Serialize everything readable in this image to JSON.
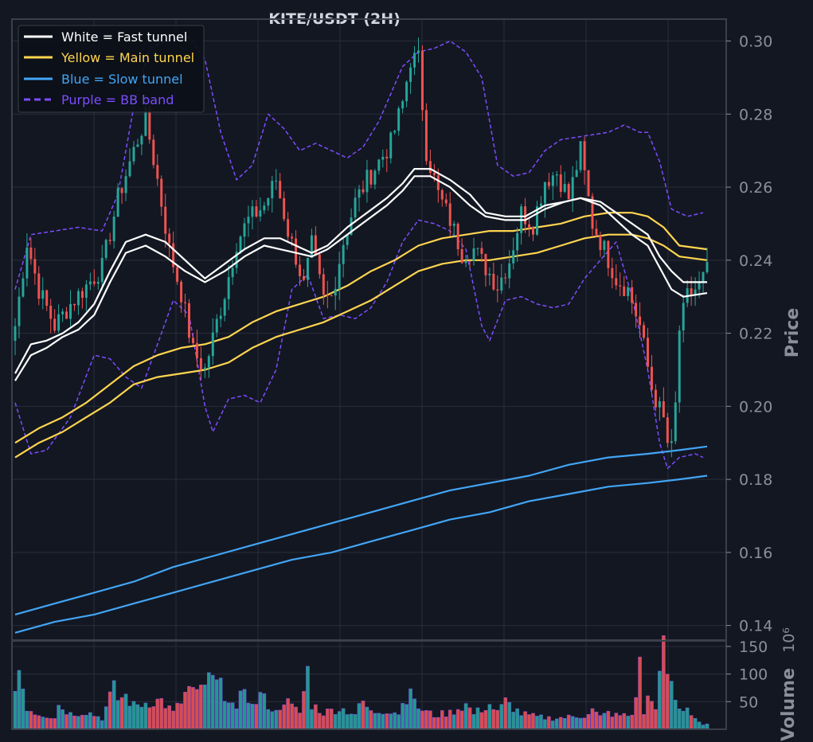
{
  "chart_data": {
    "type": "candlestick",
    "title": "KITE/USDT (2H)",
    "ylabel": "Price",
    "volume_label": "Volume",
    "volume_scale_label": "10⁶",
    "ylim": [
      0.136,
      0.306
    ],
    "volume_ylim": [
      0,
      160
    ],
    "y_ticks": [
      "0.14",
      "0.16",
      "0.18",
      "0.20",
      "0.22",
      "0.24",
      "0.26",
      "0.28",
      "0.30"
    ],
    "volume_ticks": [
      "50",
      "100",
      "150"
    ],
    "grid": true,
    "legend_position": "top-left",
    "colors": {
      "background": "#131722",
      "grid": "#2a2e39",
      "up": "#26a69a",
      "down": "#ef5350",
      "fast": "#ffffff",
      "main": "#ffd54f",
      "slow": "#42a5f5",
      "bb": "#7c4dff"
    },
    "legend": [
      {
        "label": "White = Fast tunnel",
        "color": "#ffffff",
        "dashed": false
      },
      {
        "label": "Yellow = Main tunnel",
        "color": "#ffd54f",
        "dashed": false
      },
      {
        "label": "Blue = Slow tunnel",
        "color": "#42a5f5",
        "dashed": false
      },
      {
        "label": "Purple = BB band",
        "color": "#7c4dff",
        "dashed": true
      }
    ],
    "close_anchors": [
      [
        0,
        0.222
      ],
      [
        3,
        0.245
      ],
      [
        6,
        0.232
      ],
      [
        10,
        0.222
      ],
      [
        14,
        0.228
      ],
      [
        18,
        0.233
      ],
      [
        22,
        0.238
      ],
      [
        26,
        0.257
      ],
      [
        30,
        0.27
      ],
      [
        33,
        0.279
      ],
      [
        36,
        0.262
      ],
      [
        39,
        0.243
      ],
      [
        42,
        0.231
      ],
      [
        45,
        0.215
      ],
      [
        48,
        0.21
      ],
      [
        51,
        0.223
      ],
      [
        53,
        0.231
      ],
      [
        56,
        0.245
      ],
      [
        59,
        0.251
      ],
      [
        63,
        0.255
      ],
      [
        66,
        0.262
      ],
      [
        69,
        0.248
      ],
      [
        71,
        0.241
      ],
      [
        73,
        0.233
      ],
      [
        75,
        0.244
      ],
      [
        78,
        0.229
      ],
      [
        80,
        0.23
      ],
      [
        83,
        0.245
      ],
      [
        86,
        0.256
      ],
      [
        89,
        0.262
      ],
      [
        92,
        0.267
      ],
      [
        95,
        0.272
      ],
      [
        98,
        0.283
      ],
      [
        100,
        0.295
      ],
      [
        102,
        0.295
      ],
      [
        104,
        0.27
      ],
      [
        107,
        0.258
      ],
      [
        110,
        0.251
      ],
      [
        113,
        0.242
      ],
      [
        116,
        0.243
      ],
      [
        119,
        0.238
      ],
      [
        122,
        0.233
      ],
      [
        125,
        0.24
      ],
      [
        128,
        0.253
      ],
      [
        131,
        0.25
      ],
      [
        134,
        0.262
      ],
      [
        137,
        0.264
      ],
      [
        140,
        0.257
      ],
      [
        143,
        0.27
      ],
      [
        146,
        0.25
      ],
      [
        149,
        0.243
      ],
      [
        152,
        0.235
      ],
      [
        155,
        0.232
      ],
      [
        158,
        0.222
      ],
      [
        161,
        0.205
      ],
      [
        164,
        0.196
      ],
      [
        165,
        0.19
      ],
      [
        166,
        0.188
      ],
      [
        167,
        0.2
      ],
      [
        168,
        0.221
      ],
      [
        170,
        0.23
      ],
      [
        173,
        0.233
      ],
      [
        175,
        0.237
      ]
    ],
    "fast_upper": [
      [
        0,
        0.209
      ],
      [
        4,
        0.217
      ],
      [
        8,
        0.218
      ],
      [
        12,
        0.22
      ],
      [
        16,
        0.223
      ],
      [
        20,
        0.228
      ],
      [
        24,
        0.237
      ],
      [
        28,
        0.245
      ],
      [
        33,
        0.247
      ],
      [
        38,
        0.245
      ],
      [
        43,
        0.24
      ],
      [
        48,
        0.235
      ],
      [
        53,
        0.239
      ],
      [
        58,
        0.243
      ],
      [
        63,
        0.246
      ],
      [
        67,
        0.246
      ],
      [
        71,
        0.244
      ],
      [
        75,
        0.242
      ],
      [
        79,
        0.244
      ],
      [
        84,
        0.249
      ],
      [
        89,
        0.253
      ],
      [
        94,
        0.257
      ],
      [
        98,
        0.261
      ],
      [
        101,
        0.265
      ],
      [
        105,
        0.265
      ],
      [
        110,
        0.262
      ],
      [
        115,
        0.258
      ],
      [
        119,
        0.253
      ],
      [
        124,
        0.252
      ],
      [
        129,
        0.252
      ],
      [
        134,
        0.255
      ],
      [
        139,
        0.256
      ],
      [
        143,
        0.257
      ],
      [
        148,
        0.256
      ],
      [
        152,
        0.253
      ],
      [
        156,
        0.25
      ],
      [
        160,
        0.247
      ],
      [
        163,
        0.241
      ],
      [
        166,
        0.237
      ],
      [
        169,
        0.234
      ],
      [
        175,
        0.234
      ]
    ],
    "fast_lower": [
      [
        0,
        0.207
      ],
      [
        4,
        0.214
      ],
      [
        8,
        0.216
      ],
      [
        12,
        0.219
      ],
      [
        16,
        0.221
      ],
      [
        20,
        0.225
      ],
      [
        24,
        0.234
      ],
      [
        28,
        0.242
      ],
      [
        33,
        0.244
      ],
      [
        38,
        0.241
      ],
      [
        43,
        0.237
      ],
      [
        48,
        0.234
      ],
      [
        53,
        0.237
      ],
      [
        58,
        0.241
      ],
      [
        63,
        0.244
      ],
      [
        67,
        0.243
      ],
      [
        71,
        0.242
      ],
      [
        75,
        0.241
      ],
      [
        79,
        0.243
      ],
      [
        84,
        0.247
      ],
      [
        89,
        0.251
      ],
      [
        94,
        0.255
      ],
      [
        98,
        0.259
      ],
      [
        101,
        0.263
      ],
      [
        105,
        0.263
      ],
      [
        110,
        0.26
      ],
      [
        115,
        0.255
      ],
      [
        119,
        0.252
      ],
      [
        124,
        0.251
      ],
      [
        129,
        0.251
      ],
      [
        134,
        0.254
      ],
      [
        139,
        0.256
      ],
      [
        143,
        0.257
      ],
      [
        148,
        0.255
      ],
      [
        152,
        0.251
      ],
      [
        156,
        0.247
      ],
      [
        160,
        0.244
      ],
      [
        163,
        0.238
      ],
      [
        166,
        0.232
      ],
      [
        169,
        0.23
      ],
      [
        175,
        0.231
      ]
    ],
    "main_upper": [
      [
        0,
        0.19
      ],
      [
        6,
        0.194
      ],
      [
        12,
        0.197
      ],
      [
        18,
        0.201
      ],
      [
        24,
        0.206
      ],
      [
        30,
        0.211
      ],
      [
        36,
        0.214
      ],
      [
        42,
        0.216
      ],
      [
        48,
        0.217
      ],
      [
        54,
        0.219
      ],
      [
        60,
        0.223
      ],
      [
        66,
        0.226
      ],
      [
        72,
        0.228
      ],
      [
        78,
        0.23
      ],
      [
        84,
        0.233
      ],
      [
        90,
        0.237
      ],
      [
        96,
        0.24
      ],
      [
        102,
        0.244
      ],
      [
        108,
        0.246
      ],
      [
        114,
        0.247
      ],
      [
        120,
        0.248
      ],
      [
        126,
        0.248
      ],
      [
        132,
        0.249
      ],
      [
        138,
        0.25
      ],
      [
        144,
        0.252
      ],
      [
        150,
        0.253
      ],
      [
        156,
        0.253
      ],
      [
        160,
        0.252
      ],
      [
        164,
        0.249
      ],
      [
        168,
        0.244
      ],
      [
        175,
        0.243
      ]
    ],
    "main_lower": [
      [
        0,
        0.186
      ],
      [
        6,
        0.19
      ],
      [
        12,
        0.193
      ],
      [
        18,
        0.197
      ],
      [
        24,
        0.201
      ],
      [
        30,
        0.206
      ],
      [
        36,
        0.208
      ],
      [
        42,
        0.209
      ],
      [
        48,
        0.21
      ],
      [
        54,
        0.212
      ],
      [
        60,
        0.216
      ],
      [
        66,
        0.219
      ],
      [
        72,
        0.221
      ],
      [
        78,
        0.223
      ],
      [
        84,
        0.226
      ],
      [
        90,
        0.229
      ],
      [
        96,
        0.233
      ],
      [
        102,
        0.237
      ],
      [
        108,
        0.239
      ],
      [
        114,
        0.24
      ],
      [
        120,
        0.24
      ],
      [
        126,
        0.241
      ],
      [
        132,
        0.242
      ],
      [
        138,
        0.244
      ],
      [
        144,
        0.246
      ],
      [
        150,
        0.247
      ],
      [
        156,
        0.247
      ],
      [
        160,
        0.246
      ],
      [
        164,
        0.244
      ],
      [
        168,
        0.241
      ],
      [
        175,
        0.24
      ]
    ],
    "slow_upper": [
      [
        0,
        0.143
      ],
      [
        10,
        0.146
      ],
      [
        20,
        0.149
      ],
      [
        30,
        0.152
      ],
      [
        40,
        0.156
      ],
      [
        50,
        0.159
      ],
      [
        60,
        0.162
      ],
      [
        70,
        0.165
      ],
      [
        80,
        0.168
      ],
      [
        90,
        0.171
      ],
      [
        100,
        0.174
      ],
      [
        110,
        0.177
      ],
      [
        120,
        0.179
      ],
      [
        130,
        0.181
      ],
      [
        140,
        0.184
      ],
      [
        150,
        0.186
      ],
      [
        160,
        0.187
      ],
      [
        168,
        0.188
      ],
      [
        175,
        0.189
      ]
    ],
    "slow_lower": [
      [
        0,
        0.138
      ],
      [
        10,
        0.141
      ],
      [
        20,
        0.143
      ],
      [
        30,
        0.146
      ],
      [
        40,
        0.149
      ],
      [
        50,
        0.152
      ],
      [
        60,
        0.155
      ],
      [
        70,
        0.158
      ],
      [
        80,
        0.16
      ],
      [
        90,
        0.163
      ],
      [
        100,
        0.166
      ],
      [
        110,
        0.169
      ],
      [
        120,
        0.171
      ],
      [
        130,
        0.174
      ],
      [
        140,
        0.176
      ],
      [
        150,
        0.178
      ],
      [
        160,
        0.179
      ],
      [
        168,
        0.18
      ],
      [
        175,
        0.181
      ]
    ],
    "bb_upper": [
      [
        0,
        0.232
      ],
      [
        4,
        0.247
      ],
      [
        10,
        0.248
      ],
      [
        16,
        0.249
      ],
      [
        22,
        0.248
      ],
      [
        26,
        0.258
      ],
      [
        30,
        0.282
      ],
      [
        34,
        0.298
      ],
      [
        38,
        0.3
      ],
      [
        44,
        0.301
      ],
      [
        48,
        0.295
      ],
      [
        52,
        0.275
      ],
      [
        56,
        0.262
      ],
      [
        60,
        0.266
      ],
      [
        64,
        0.28
      ],
      [
        68,
        0.276
      ],
      [
        72,
        0.27
      ],
      [
        76,
        0.272
      ],
      [
        80,
        0.27
      ],
      [
        84,
        0.268
      ],
      [
        88,
        0.271
      ],
      [
        92,
        0.278
      ],
      [
        98,
        0.293
      ],
      [
        102,
        0.297
      ],
      [
        106,
        0.298
      ],
      [
        110,
        0.3
      ],
      [
        114,
        0.297
      ],
      [
        118,
        0.29
      ],
      [
        122,
        0.266
      ],
      [
        126,
        0.263
      ],
      [
        130,
        0.264
      ],
      [
        134,
        0.27
      ],
      [
        138,
        0.273
      ],
      [
        144,
        0.274
      ],
      [
        150,
        0.275
      ],
      [
        154,
        0.277
      ],
      [
        158,
        0.275
      ],
      [
        160,
        0.275
      ],
      [
        163,
        0.267
      ],
      [
        166,
        0.254
      ],
      [
        170,
        0.252
      ],
      [
        174,
        0.253
      ]
    ],
    "bb_lower": [
      [
        0,
        0.201
      ],
      [
        4,
        0.187
      ],
      [
        8,
        0.188
      ],
      [
        14,
        0.197
      ],
      [
        20,
        0.214
      ],
      [
        24,
        0.213
      ],
      [
        28,
        0.208
      ],
      [
        32,
        0.205
      ],
      [
        36,
        0.217
      ],
      [
        40,
        0.229
      ],
      [
        44,
        0.225
      ],
      [
        48,
        0.2
      ],
      [
        50,
        0.193
      ],
      [
        54,
        0.202
      ],
      [
        58,
        0.203
      ],
      [
        62,
        0.201
      ],
      [
        66,
        0.21
      ],
      [
        70,
        0.232
      ],
      [
        74,
        0.236
      ],
      [
        78,
        0.224
      ],
      [
        82,
        0.225
      ],
      [
        86,
        0.224
      ],
      [
        90,
        0.227
      ],
      [
        94,
        0.234
      ],
      [
        98,
        0.245
      ],
      [
        102,
        0.251
      ],
      [
        106,
        0.25
      ],
      [
        110,
        0.248
      ],
      [
        114,
        0.243
      ],
      [
        118,
        0.222
      ],
      [
        120,
        0.218
      ],
      [
        124,
        0.229
      ],
      [
        128,
        0.23
      ],
      [
        132,
        0.228
      ],
      [
        136,
        0.227
      ],
      [
        140,
        0.228
      ],
      [
        144,
        0.235
      ],
      [
        148,
        0.24
      ],
      [
        152,
        0.245
      ],
      [
        156,
        0.23
      ],
      [
        160,
        0.21
      ],
      [
        163,
        0.19
      ],
      [
        165,
        0.183
      ],
      [
        168,
        0.186
      ],
      [
        172,
        0.187
      ],
      [
        174,
        0.186
      ]
    ],
    "volume_anchors": [
      [
        0,
        70
      ],
      [
        1,
        110
      ],
      [
        2,
        78
      ],
      [
        3,
        40
      ],
      [
        5,
        30
      ],
      [
        10,
        22
      ],
      [
        11,
        44
      ],
      [
        14,
        28
      ],
      [
        18,
        32
      ],
      [
        22,
        20
      ],
      [
        24,
        58
      ],
      [
        25,
        72
      ],
      [
        26,
        55
      ],
      [
        28,
        60
      ],
      [
        30,
        42
      ],
      [
        34,
        50
      ],
      [
        37,
        52
      ],
      [
        40,
        30
      ],
      [
        42,
        50
      ],
      [
        44,
        75
      ],
      [
        46,
        60
      ],
      [
        48,
        85
      ],
      [
        50,
        88
      ],
      [
        52,
        75
      ],
      [
        54,
        60
      ],
      [
        56,
        30
      ],
      [
        58,
        82
      ],
      [
        60,
        40
      ],
      [
        62,
        62
      ],
      [
        64,
        45
      ],
      [
        66,
        30
      ],
      [
        68,
        55
      ],
      [
        70,
        40
      ],
      [
        72,
        30
      ],
      [
        74,
        105
      ],
      [
        75,
        45
      ],
      [
        78,
        30
      ],
      [
        82,
        38
      ],
      [
        86,
        28
      ],
      [
        88,
        50
      ],
      [
        90,
        30
      ],
      [
        94,
        35
      ],
      [
        97,
        30
      ],
      [
        99,
        60
      ],
      [
        100,
        85
      ],
      [
        101,
        45
      ],
      [
        103,
        35
      ],
      [
        106,
        25
      ],
      [
        110,
        30
      ],
      [
        114,
        45
      ],
      [
        116,
        28
      ],
      [
        120,
        45
      ],
      [
        122,
        30
      ],
      [
        124,
        50
      ],
      [
        128,
        28
      ],
      [
        132,
        22
      ],
      [
        136,
        20
      ],
      [
        140,
        22
      ],
      [
        144,
        25
      ],
      [
        146,
        35
      ],
      [
        148,
        22
      ],
      [
        150,
        30
      ],
      [
        152,
        25
      ],
      [
        156,
        25
      ],
      [
        158,
        112
      ],
      [
        159,
        30
      ],
      [
        160,
        55
      ],
      [
        162,
        45
      ],
      [
        164,
        140
      ],
      [
        165,
        105
      ],
      [
        166,
        75
      ],
      [
        168,
        35
      ],
      [
        170,
        40
      ],
      [
        172,
        20
      ],
      [
        174,
        8
      ]
    ]
  }
}
